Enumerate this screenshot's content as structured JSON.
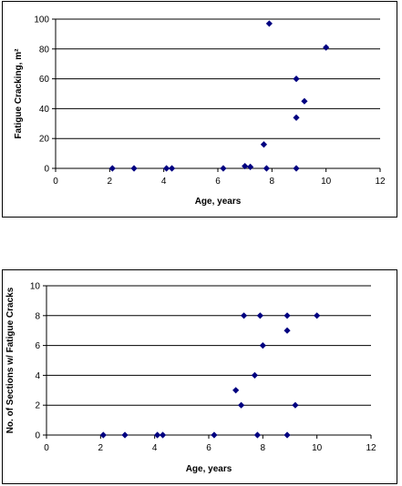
{
  "chart_data": [
    {
      "type": "scatter",
      "xlabel": "Age, years",
      "ylabel": "Fatigue Cracking, m²",
      "xlim": [
        0,
        12
      ],
      "ylim": [
        0,
        100
      ],
      "xticks": [
        "0",
        "2",
        "4",
        "6",
        "8",
        "10",
        "12"
      ],
      "yticks": [
        "0",
        "20",
        "40",
        "60",
        "80",
        "100"
      ],
      "grid": "horizontal",
      "marker_color": "#000080",
      "points": [
        {
          "x": 2.1,
          "y": 0
        },
        {
          "x": 2.9,
          "y": 0
        },
        {
          "x": 4.1,
          "y": 0
        },
        {
          "x": 4.3,
          "y": 0
        },
        {
          "x": 6.2,
          "y": 0
        },
        {
          "x": 7.0,
          "y": 1.5
        },
        {
          "x": 7.2,
          "y": 1
        },
        {
          "x": 7.7,
          "y": 16
        },
        {
          "x": 7.8,
          "y": 0
        },
        {
          "x": 7.9,
          "y": 97
        },
        {
          "x": 8.9,
          "y": 60
        },
        {
          "x": 8.9,
          "y": 34
        },
        {
          "x": 8.9,
          "y": 0
        },
        {
          "x": 9.2,
          "y": 45
        },
        {
          "x": 10.0,
          "y": 81
        }
      ]
    },
    {
      "type": "scatter",
      "xlabel": "Age, years",
      "ylabel": "No. of Sections w/ Fatigue Cracks",
      "xlim": [
        0,
        12
      ],
      "ylim": [
        0,
        10
      ],
      "xticks": [
        "0",
        "2",
        "4",
        "6",
        "8",
        "10",
        "12"
      ],
      "yticks": [
        "0",
        "2",
        "4",
        "6",
        "8",
        "10"
      ],
      "grid": "horizontal",
      "marker_color": "#000080",
      "points": [
        {
          "x": 2.1,
          "y": 0
        },
        {
          "x": 2.9,
          "y": 0
        },
        {
          "x": 4.1,
          "y": 0
        },
        {
          "x": 4.3,
          "y": 0
        },
        {
          "x": 6.2,
          "y": 0
        },
        {
          "x": 7.0,
          "y": 3
        },
        {
          "x": 7.2,
          "y": 2
        },
        {
          "x": 7.3,
          "y": 8
        },
        {
          "x": 7.7,
          "y": 4
        },
        {
          "x": 7.8,
          "y": 0
        },
        {
          "x": 7.9,
          "y": 8
        },
        {
          "x": 8.0,
          "y": 6
        },
        {
          "x": 8.9,
          "y": 8
        },
        {
          "x": 8.9,
          "y": 7
        },
        {
          "x": 8.9,
          "y": 0
        },
        {
          "x": 9.2,
          "y": 2
        },
        {
          "x": 10.0,
          "y": 8
        }
      ]
    }
  ]
}
